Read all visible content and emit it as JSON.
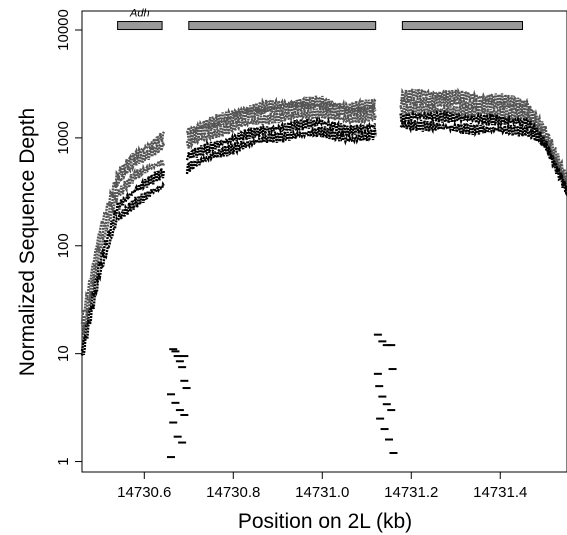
{
  "chart_data": {
    "type": "scatter",
    "title": "",
    "xlabel": "Position on 2L (kb)",
    "ylabel": "Normalized Sequence Depth",
    "xlim": [
      14730.46,
      14731.55
    ],
    "ylim": [
      0.8,
      15000
    ],
    "y_scale": "log",
    "grid": false,
    "legend": "none",
    "x_ticks": [
      {
        "value": 14730.6,
        "label": "14730.6"
      },
      {
        "value": 14730.8,
        "label": "14730.8"
      },
      {
        "value": 14731.0,
        "label": "14731.0"
      },
      {
        "value": 14731.2,
        "label": "14731.2"
      },
      {
        "value": 14731.4,
        "label": "14731.4"
      }
    ],
    "y_ticks": [
      {
        "value": 1,
        "label": "1"
      },
      {
        "value": 10,
        "label": "10"
      },
      {
        "value": 100,
        "label": "100"
      },
      {
        "value": 1000,
        "label": "1000"
      },
      {
        "value": 10000,
        "label": "10000"
      }
    ],
    "gene_bars": [
      {
        "x0": 14730.54,
        "x1": 14730.64,
        "y": 11000,
        "label": "Adh"
      },
      {
        "x0": 14730.7,
        "x1": 14731.12,
        "y": 11000,
        "label": ""
      },
      {
        "x0": 14731.18,
        "x1": 14731.45,
        "y": 11000,
        "label": ""
      }
    ],
    "colors": {
      "upper_tracks": "#555555",
      "lower_tracks": "#000000",
      "gene_bar": "#999999",
      "gap_points": "#000000"
    },
    "series": [
      {
        "x": [
          14730.46,
          14730.5,
          14730.54,
          14730.58,
          14730.62,
          14730.645,
          14730.705,
          14730.76,
          14730.82,
          14730.88,
          14730.94,
          14731.0,
          14731.06,
          14731.12,
          14731.175,
          14731.22,
          14731.28,
          14731.34,
          14731.4,
          14731.46,
          14731.5,
          14731.55
        ],
        "y": [
          20,
          140,
          450,
          700,
          900,
          1050,
          1200,
          1450,
          1800,
          2000,
          2100,
          2200,
          1900,
          2100,
          2400,
          2600,
          2500,
          2400,
          2300,
          2100,
          1200,
          420
        ]
      },
      {
        "x": [
          14730.46,
          14730.5,
          14730.54,
          14730.58,
          14730.62,
          14730.645,
          14730.705,
          14730.76,
          14730.82,
          14730.88,
          14730.94,
          14731.0,
          14731.06,
          14731.12,
          14731.175,
          14731.22,
          14731.28,
          14731.34,
          14731.4,
          14731.46,
          14731.5,
          14731.55
        ],
        "y": [
          15,
          110,
          380,
          600,
          750,
          850,
          1050,
          1300,
          1600,
          1800,
          1900,
          2000,
          1700,
          1900,
          2100,
          2200,
          2150,
          2050,
          2000,
          1850,
          1000,
          380
        ]
      },
      {
        "x": [
          14730.46,
          14730.5,
          14730.54,
          14730.58,
          14730.62,
          14730.645,
          14730.705,
          14730.76,
          14730.82,
          14730.88,
          14730.94,
          14731.0,
          14731.06,
          14731.12,
          14731.175,
          14731.22,
          14731.28,
          14731.34,
          14731.4,
          14731.46,
          14731.5,
          14731.55
        ],
        "y": [
          13,
          90,
          300,
          450,
          550,
          600,
          900,
          1100,
          1350,
          1500,
          1600,
          1700,
          1450,
          1650,
          1800,
          1850,
          1800,
          1750,
          1700,
          1600,
          950,
          360
        ]
      },
      {
        "x": [
          14730.46,
          14730.5,
          14730.54,
          14730.58,
          14730.62,
          14730.645,
          14730.705,
          14730.76,
          14730.82,
          14730.88,
          14730.94,
          14731.0,
          14731.06,
          14731.12,
          14731.175,
          14731.22,
          14731.28,
          14731.34,
          14731.4,
          14731.46,
          14731.5,
          14731.55
        ],
        "y": [
          11,
          70,
          230,
          330,
          420,
          480,
          700,
          850,
          1050,
          1200,
          1300,
          1400,
          1150,
          1300,
          1500,
          1600,
          1550,
          1500,
          1450,
          1400,
          900,
          340
        ]
      },
      {
        "x": [
          14730.46,
          14730.5,
          14730.54,
          14730.58,
          14730.62,
          14730.645,
          14730.705,
          14730.76,
          14730.82,
          14730.88,
          14730.94,
          14731.0,
          14731.06,
          14731.12,
          14731.175,
          14731.22,
          14731.28,
          14731.34,
          14731.4,
          14731.46,
          14731.5,
          14731.55
        ],
        "y": [
          9,
          55,
          180,
          250,
          320,
          360,
          550,
          700,
          850,
          1000,
          1050,
          1150,
          950,
          1100,
          1300,
          1300,
          1250,
          1200,
          1200,
          1150,
          850,
          320
        ]
      }
    ],
    "gap_points": [
      {
        "x": 14730.665,
        "y": 11
      },
      {
        "x": 14730.67,
        "y": 10.5
      },
      {
        "x": 14730.675,
        "y": 9.5
      },
      {
        "x": 14730.68,
        "y": 8.5
      },
      {
        "x": 14730.685,
        "y": 7.5
      },
      {
        "x": 14730.69,
        "y": 9.5
      },
      {
        "x": 14730.66,
        "y": 4.2
      },
      {
        "x": 14730.67,
        "y": 3.5
      },
      {
        "x": 14730.68,
        "y": 3.0
      },
      {
        "x": 14730.69,
        "y": 2.7
      },
      {
        "x": 14730.665,
        "y": 2.3
      },
      {
        "x": 14730.675,
        "y": 1.7
      },
      {
        "x": 14730.685,
        "y": 1.5
      },
      {
        "x": 14730.695,
        "y": 4.8
      },
      {
        "x": 14730.66,
        "y": 1.1
      },
      {
        "x": 14730.69,
        "y": 5.6
      },
      {
        "x": 14731.125,
        "y": 15
      },
      {
        "x": 14731.135,
        "y": 13
      },
      {
        "x": 14731.145,
        "y": 12
      },
      {
        "x": 14731.155,
        "y": 12
      },
      {
        "x": 14731.125,
        "y": 6.5
      },
      {
        "x": 14731.135,
        "y": 4.0
      },
      {
        "x": 14731.145,
        "y": 3.4
      },
      {
        "x": 14731.155,
        "y": 3.0
      },
      {
        "x": 14731.13,
        "y": 2.5
      },
      {
        "x": 14731.14,
        "y": 2.0
      },
      {
        "x": 14731.15,
        "y": 1.6
      },
      {
        "x": 14731.16,
        "y": 1.2
      },
      {
        "x": 14731.128,
        "y": 5.0
      },
      {
        "x": 14731.158,
        "y": 7.2
      }
    ]
  }
}
